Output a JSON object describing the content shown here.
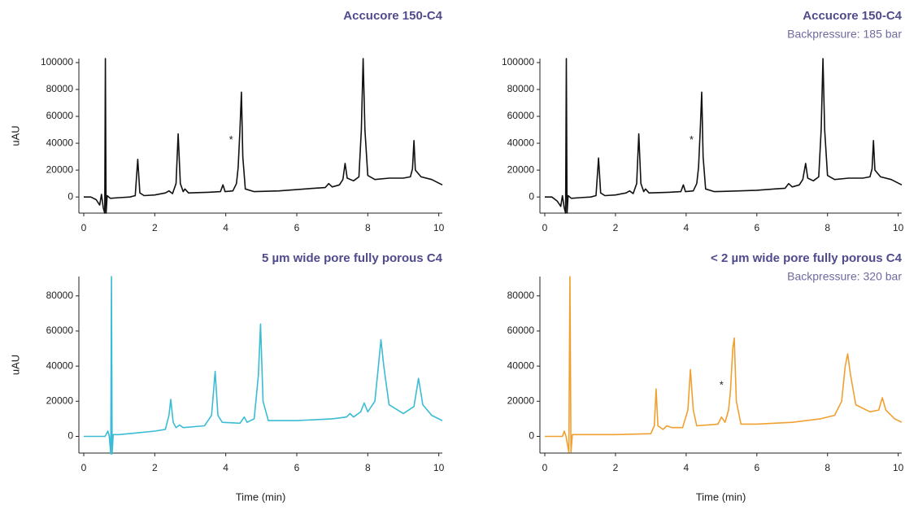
{
  "chart_data": [
    {
      "type": "line",
      "title": "Accucore 150-C4",
      "y_label": "uAU",
      "x": [
        0,
        0.2,
        0.35,
        0.45,
        0.5,
        0.55,
        0.59,
        0.61,
        0.63,
        0.66,
        0.75,
        1.0,
        1.3,
        1.45,
        1.52,
        1.58,
        1.7,
        2.0,
        2.3,
        2.4,
        2.5,
        2.6,
        2.66,
        2.72,
        2.8,
        2.85,
        2.95,
        3.5,
        3.85,
        3.92,
        3.98,
        4.2,
        4.3,
        4.35,
        4.4,
        4.44,
        4.48,
        4.55,
        4.8,
        5.5,
        6.0,
        6.5,
        6.8,
        6.9,
        7.0,
        7.2,
        7.3,
        7.36,
        7.42,
        7.6,
        7.75,
        7.82,
        7.87,
        7.92,
        8.0,
        8.2,
        8.6,
        9.0,
        9.2,
        9.26,
        9.3,
        9.34,
        9.5,
        9.8,
        10.1
      ],
      "series": [
        {
          "color": "#111111",
          "values": [
            0,
            0,
            -2000,
            -6000,
            2000,
            -8000,
            -12000,
            103000,
            -12000,
            1000,
            -1000,
            -500,
            0,
            1000,
            28000,
            3000,
            1000,
            1500,
            3000,
            4500,
            2500,
            10000,
            47000,
            10000,
            4000,
            6000,
            3000,
            3500,
            4000,
            9000,
            4000,
            4500,
            10000,
            22000,
            50000,
            78000,
            30000,
            6000,
            4000,
            4500,
            5500,
            6500,
            7000,
            10000,
            7500,
            9000,
            13000,
            25000,
            14000,
            12000,
            15000,
            50000,
            103000,
            50000,
            16000,
            13000,
            14000,
            14000,
            15000,
            21000,
            42000,
            20000,
            15000,
            13000,
            9000
          ]
        }
      ],
      "annotations": [
        {
          "text": "*",
          "x": 4.15,
          "y": 42000
        }
      ],
      "xlim": [
        0,
        10.1
      ],
      "xticks": [
        0,
        2,
        4,
        6,
        8,
        10
      ],
      "ylim": [
        -12000,
        103000
      ],
      "yticks": [
        0,
        20000,
        40000,
        60000,
        80000,
        100000
      ]
    },
    {
      "type": "line",
      "title": "Accucore 150-C4",
      "subtitle": "Backpressure: 185 bar",
      "x": [
        0,
        0.2,
        0.35,
        0.45,
        0.5,
        0.55,
        0.59,
        0.61,
        0.63,
        0.66,
        0.75,
        1.0,
        1.3,
        1.45,
        1.52,
        1.58,
        1.7,
        2.0,
        2.3,
        2.4,
        2.5,
        2.6,
        2.66,
        2.72,
        2.8,
        2.85,
        2.95,
        3.5,
        3.85,
        3.92,
        3.98,
        4.2,
        4.3,
        4.35,
        4.4,
        4.44,
        4.48,
        4.55,
        4.8,
        5.5,
        6.0,
        6.5,
        6.8,
        6.9,
        7.0,
        7.2,
        7.3,
        7.38,
        7.44,
        7.6,
        7.75,
        7.82,
        7.87,
        7.92,
        8.0,
        8.2,
        8.6,
        9.0,
        9.2,
        9.26,
        9.3,
        9.34,
        9.5,
        9.8,
        10.1
      ],
      "series": [
        {
          "color": "#111111",
          "values": [
            0,
            0,
            -3000,
            -7000,
            1000,
            -8000,
            -12000,
            103000,
            -12000,
            1000,
            -1000,
            -500,
            0,
            1000,
            29000,
            3000,
            1000,
            1500,
            3000,
            4500,
            2500,
            10000,
            47000,
            10000,
            4000,
            6000,
            3000,
            3500,
            4000,
            9000,
            4000,
            4500,
            10000,
            22000,
            50000,
            78000,
            30000,
            6000,
            4000,
            4500,
            5000,
            6000,
            6500,
            10000,
            7500,
            9000,
            13000,
            25000,
            14000,
            12000,
            15000,
            50000,
            103000,
            50000,
            16000,
            13000,
            14000,
            14000,
            15000,
            21000,
            42000,
            20000,
            15000,
            13000,
            9000
          ]
        }
      ],
      "annotations": [
        {
          "text": "*",
          "x": 4.15,
          "y": 42000
        }
      ],
      "xlim": [
        0,
        10.1
      ],
      "xticks": [
        0,
        2,
        4,
        6,
        8,
        10
      ],
      "ylim": [
        -12000,
        103000
      ],
      "yticks": [
        0,
        20000,
        40000,
        60000,
        80000,
        100000
      ]
    },
    {
      "type": "line",
      "title": "5 µm wide pore fully porous C4",
      "y_label": "uAU",
      "x_label": "Time (min)",
      "x": [
        0,
        0.6,
        0.68,
        0.72,
        0.76,
        0.78,
        0.8,
        0.83,
        1.0,
        1.5,
        2.0,
        2.3,
        2.4,
        2.45,
        2.52,
        2.6,
        2.7,
        2.8,
        3.4,
        3.6,
        3.7,
        3.78,
        3.9,
        4.4,
        4.52,
        4.6,
        4.8,
        4.92,
        4.98,
        5.05,
        5.2,
        6.0,
        7.0,
        7.4,
        7.5,
        7.6,
        7.8,
        7.9,
        8.0,
        8.2,
        8.3,
        8.37,
        8.45,
        8.6,
        9.0,
        9.3,
        9.43,
        9.55,
        9.8,
        10.1
      ],
      "series": [
        {
          "color": "#3bbcd4",
          "values": [
            0,
            0,
            3000,
            0,
            -10000,
            91000,
            -10000,
            1000,
            1000,
            2000,
            3000,
            4000,
            12000,
            21000,
            8000,
            5000,
            6500,
            5000,
            6000,
            12000,
            37000,
            12000,
            8000,
            7500,
            11000,
            8000,
            10000,
            35000,
            64000,
            20000,
            9000,
            9000,
            10000,
            11000,
            13000,
            11000,
            14000,
            19000,
            14000,
            20000,
            40000,
            55000,
            40000,
            18000,
            13000,
            17000,
            33000,
            18000,
            12000,
            9000
          ]
        }
      ],
      "xlim": [
        0,
        10.1
      ],
      "xticks": [
        0,
        2,
        4,
        6,
        8,
        10
      ],
      "ylim": [
        -9500,
        91000
      ],
      "yticks": [
        0,
        20000,
        40000,
        60000,
        80000
      ]
    },
    {
      "type": "line",
      "title": "< 2 µm wide pore fully porous C4",
      "subtitle": "Backpressure: 320 bar",
      "x_label": "Time (min)",
      "x": [
        0,
        0.5,
        0.55,
        0.6,
        0.68,
        0.71,
        0.74,
        0.78,
        1.0,
        2.0,
        3.0,
        3.1,
        3.15,
        3.2,
        3.35,
        3.45,
        3.6,
        3.9,
        4.05,
        4.12,
        4.2,
        4.3,
        4.9,
        5.0,
        5.1,
        5.2,
        5.25,
        5.32,
        5.36,
        5.42,
        5.55,
        6.0,
        7.0,
        7.8,
        8.2,
        8.4,
        8.5,
        8.57,
        8.65,
        8.8,
        9.2,
        9.45,
        9.55,
        9.65,
        9.9,
        10.1
      ],
      "series": [
        {
          "color": "#f0a030",
          "values": [
            0,
            0,
            3000,
            0,
            -9000,
            91000,
            -9000,
            1000,
            1000,
            1000,
            1500,
            6000,
            27000,
            6000,
            4000,
            6000,
            5000,
            5000,
            15000,
            38000,
            15000,
            6000,
            7000,
            11000,
            8000,
            15000,
            25000,
            50000,
            56000,
            20000,
            7000,
            7000,
            8000,
            10000,
            12000,
            20000,
            40000,
            47000,
            35000,
            18000,
            14000,
            15000,
            22000,
            15000,
            10000,
            8000
          ]
        }
      ],
      "annotations": [
        {
          "text": "*",
          "x": 5.0,
          "y": 29000
        }
      ],
      "xlim": [
        0,
        10.1
      ],
      "xticks": [
        0,
        2,
        4,
        6,
        8,
        10
      ],
      "ylim": [
        -9500,
        91000
      ],
      "yticks": [
        0,
        20000,
        40000,
        60000,
        80000
      ]
    }
  ]
}
